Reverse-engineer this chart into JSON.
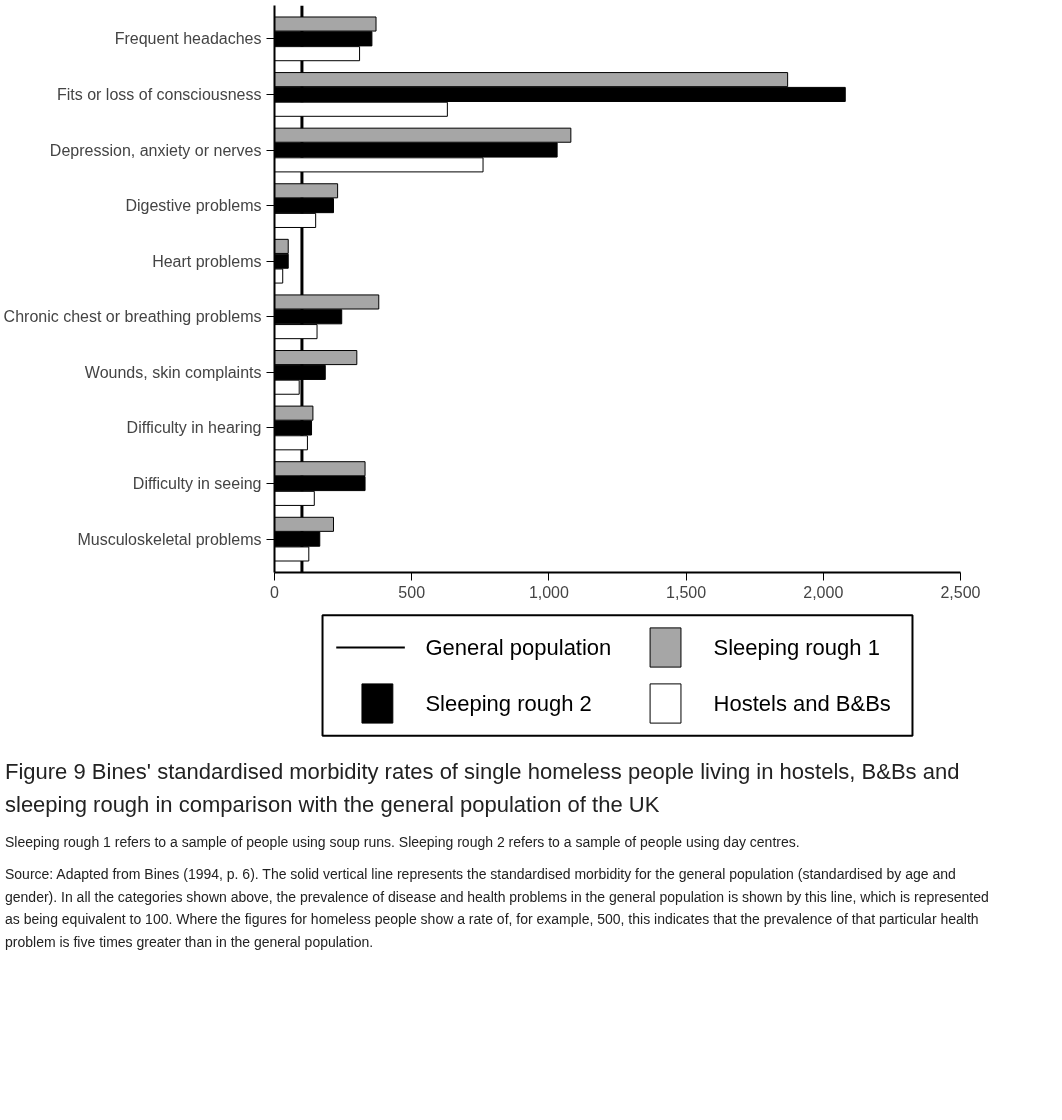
{
  "chart_data": {
    "type": "bar",
    "orientation": "horizontal",
    "title": "Figure 9 Bines' standardised morbidity rates of single homeless people living in hostels, B&Bs and sleeping rough in comparison with the general population of the UK",
    "categories": [
      "Frequent headaches",
      "Fits or loss of consciousness",
      "Depression, anxiety or nerves",
      "Digestive problems",
      "Heart problems",
      "Chronic chest or breathing problems",
      "Wounds, skin complaints",
      "Difficulty in hearing",
      "Difficulty in seeing",
      "Musculoskeletal problems"
    ],
    "series": [
      {
        "name": "Sleeping rough 1",
        "color": "#a6a6a6",
        "values": [
          370,
          1870,
          1080,
          230,
          50,
          380,
          300,
          140,
          330,
          215
        ]
      },
      {
        "name": "Sleeping rough 2",
        "color": "#000000",
        "values": [
          355,
          2080,
          1030,
          215,
          50,
          245,
          185,
          135,
          330,
          165
        ]
      },
      {
        "name": "Hostels and B&Bs",
        "color": "#ffffff",
        "values": [
          310,
          630,
          760,
          150,
          30,
          155,
          90,
          120,
          145,
          125
        ]
      }
    ],
    "xlim": [
      0,
      2500
    ],
    "xticks": [
      0,
      500,
      {
        "value": 1000,
        "label": "1,000"
      },
      {
        "value": 1500,
        "label": "1,500"
      },
      {
        "value": 2000,
        "label": "2,000"
      },
      {
        "value": 2500,
        "label": "2,500"
      }
    ],
    "ref_lines": [
      {
        "axis": "x",
        "value": 100,
        "label": "General population",
        "color": "#000000"
      }
    ],
    "legend": "bottom",
    "grid": false,
    "annotations": [
      "Sleeping rough 1 refers to a sample of people using soup runs.  Sleeping rough 2 refers to a sample of people using day centres.",
      "Source: Adapted from Bines (1994, p. 6). The solid vertical line represents the standardised morbidity for the general population (standardised by age and gender). In all the categories shown above, the prevalence of disease and health problems in the general population is shown by this line, which is represented as being equivalent to 100. Where the figures for homeless people show a rate of, for example, 500, this indicates that the prevalence of that particular health problem is five times greater than in the general population."
    ]
  }
}
